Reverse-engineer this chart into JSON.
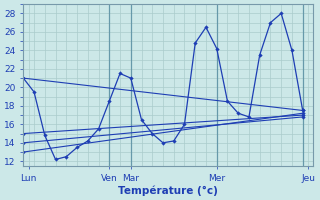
{
  "background_color": "#cce8e8",
  "grid_color": "#aacccc",
  "line_color": "#1e3eb4",
  "xlabel": "Température (°c)",
  "ylim": [
    11.5,
    29
  ],
  "yticks": [
    12,
    14,
    16,
    18,
    20,
    22,
    24,
    26,
    28
  ],
  "xlim": [
    0,
    27
  ],
  "day_labels": [
    "Lun",
    "Ven",
    "Mar",
    "Mer",
    "Jeu"
  ],
  "day_positions": [
    0.5,
    8,
    10,
    18,
    26.5
  ],
  "vline_positions": [
    8,
    10,
    18,
    26
  ],
  "minor_x_ticks": [
    0,
    1,
    2,
    3,
    4,
    5,
    6,
    7,
    8,
    9,
    10,
    11,
    12,
    13,
    14,
    15,
    16,
    17,
    18,
    19,
    20,
    21,
    22,
    23,
    24,
    25,
    26
  ],
  "series_main": {
    "x": [
      0,
      1,
      2,
      3,
      4,
      5,
      6,
      7,
      8,
      9,
      10,
      11,
      12,
      13,
      14,
      15,
      16,
      17,
      18,
      19,
      20,
      21,
      22,
      23,
      24,
      25,
      26
    ],
    "y": [
      21,
      19.5,
      14.8,
      12.2,
      12.5,
      13.5,
      14.2,
      15.5,
      18.5,
      21.5,
      21.0,
      16.5,
      15.0,
      14.0,
      14.2,
      16.0,
      24.8,
      26.5,
      24.2,
      18.5,
      17.2,
      16.8,
      23.5,
      27.0,
      28.0,
      24.0,
      17.5
    ]
  },
  "series_lines": [
    {
      "x": [
        0,
        26
      ],
      "y": [
        21.0,
        17.5
      ]
    },
    {
      "x": [
        0,
        26
      ],
      "y": [
        15.0,
        17.0
      ]
    },
    {
      "x": [
        0,
        26
      ],
      "y": [
        14.0,
        16.8
      ]
    },
    {
      "x": [
        0,
        26
      ],
      "y": [
        13.0,
        17.2
      ]
    }
  ]
}
